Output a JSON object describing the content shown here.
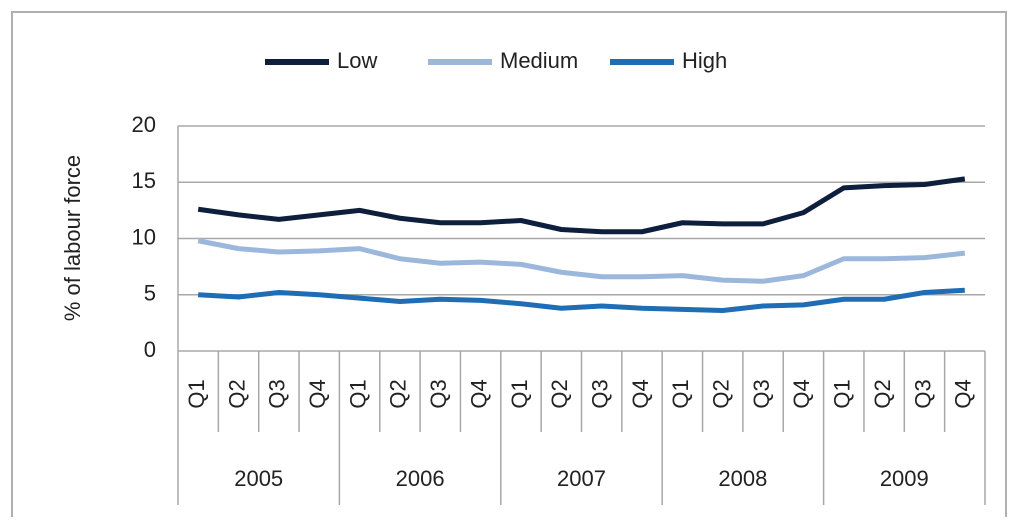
{
  "chart_data": {
    "type": "line",
    "y_label": "% of labour force",
    "categories": [
      "Q1",
      "Q2",
      "Q3",
      "Q4",
      "Q1",
      "Q2",
      "Q3",
      "Q4",
      "Q1",
      "Q2",
      "Q3",
      "Q4",
      "Q1",
      "Q2",
      "Q3",
      "Q4",
      "Q1",
      "Q2",
      "Q3",
      "Q4"
    ],
    "groups": [
      "2005",
      "2006",
      "2007",
      "2008",
      "2009"
    ],
    "series": [
      {
        "name": "Low",
        "color": "#0d1f3c",
        "values": [
          12.6,
          12.1,
          11.7,
          12.1,
          12.5,
          11.8,
          11.4,
          11.4,
          11.6,
          10.8,
          10.6,
          10.6,
          11.4,
          11.3,
          11.3,
          12.3,
          14.5,
          14.7,
          14.8,
          15.3
        ]
      },
      {
        "name": "Medium",
        "color": "#9bb7dc",
        "values": [
          9.8,
          9.1,
          8.8,
          8.9,
          9.1,
          8.2,
          7.8,
          7.9,
          7.7,
          7.0,
          6.6,
          6.6,
          6.7,
          6.3,
          6.2,
          6.7,
          8.2,
          8.2,
          8.3,
          8.7
        ]
      },
      {
        "name": "High",
        "color": "#1f6db5",
        "values": [
          5.0,
          4.8,
          5.2,
          5.0,
          4.7,
          4.4,
          4.6,
          4.5,
          4.2,
          3.8,
          4.0,
          3.8,
          3.7,
          3.6,
          4.0,
          4.1,
          4.6,
          4.6,
          5.2,
          5.4
        ]
      }
    ],
    "ylim": [
      0,
      20
    ],
    "yticks": [
      0,
      5,
      10,
      15,
      20
    ],
    "grid": true,
    "legend": "top"
  }
}
